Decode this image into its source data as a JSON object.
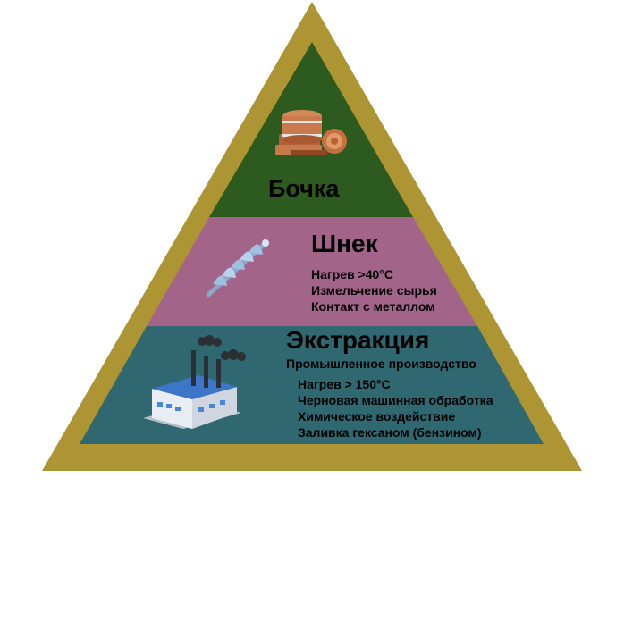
{
  "colors": {
    "frame": "#ae9533",
    "tier_top": "#2d5a1f",
    "tier_middle": "#a3648a",
    "tier_bottom": "#2f6870"
  },
  "tiers": {
    "top": {
      "title": "Бочка",
      "icon": "barrel-wood-icon"
    },
    "middle": {
      "title": "Шнек",
      "icon": "screw-auger-icon",
      "items": [
        "Нагрев >40°C",
        "Измельчение сырья",
        "Контакт с металлом"
      ]
    },
    "bottom": {
      "title": "Экстракция",
      "subtitle": "Промышленное производство",
      "icon": "factory-icon",
      "items": [
        "Нагрев > 150°C",
        "Черновая машинная обработка",
        "Химическое воздействие",
        "Заливка гексаном (бензином)"
      ]
    }
  }
}
